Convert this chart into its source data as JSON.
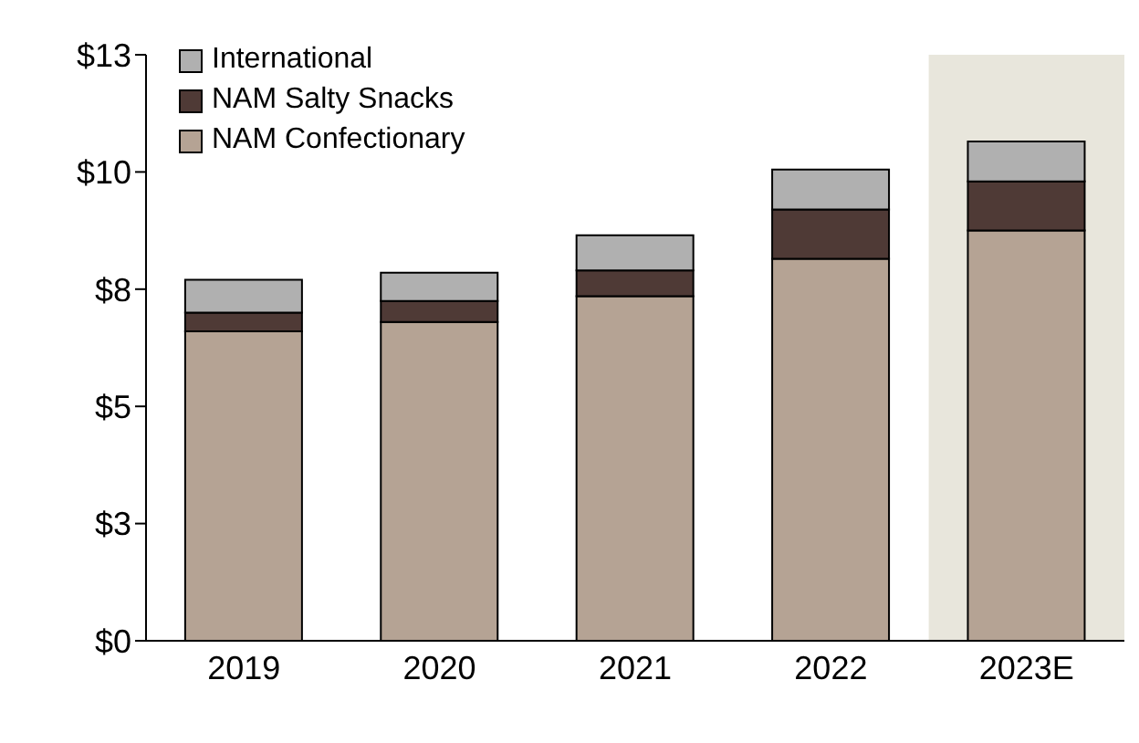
{
  "chart_data": {
    "type": "bar",
    "stacked": true,
    "categories": [
      "2019",
      "2020",
      "2021",
      "2022",
      "2023E"
    ],
    "series": [
      {
        "name": "NAM Confectionary",
        "color": "#b5a394",
        "values": [
          6.6,
          6.8,
          7.35,
          8.15,
          8.75
        ]
      },
      {
        "name": "NAM Salty Snacks",
        "color": "#4f3a36",
        "values": [
          0.4,
          0.45,
          0.55,
          1.05,
          1.05
        ]
      },
      {
        "name": "International",
        "color": "#b0b0b0",
        "values": [
          0.7,
          0.6,
          0.75,
          0.85,
          0.85
        ]
      }
    ],
    "ylim": [
      0,
      12.5
    ],
    "yticks": [
      {
        "value": 0,
        "label": "$0"
      },
      {
        "value": 2.5,
        "label": "$3"
      },
      {
        "value": 5,
        "label": "$5"
      },
      {
        "value": 7.5,
        "label": "$8"
      },
      {
        "value": 10,
        "label": "$10"
      },
      {
        "value": 12.5,
        "label": "$13"
      }
    ],
    "bands": [
      {
        "axis": "x",
        "from": "2023E",
        "to": "2023E",
        "color": "#e8e6dc"
      }
    ],
    "grid": false,
    "legend": "top left"
  }
}
